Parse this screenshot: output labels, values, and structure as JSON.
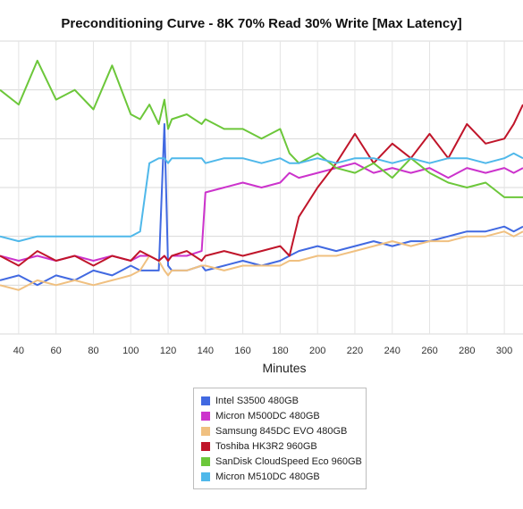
{
  "chart_data": {
    "type": "line",
    "title": "Preconditioning Curve - 8K 70% Read 30% Write [Max Latency]",
    "xlabel": "Minutes",
    "ylabel": "",
    "xlim": [
      30,
      310
    ],
    "ylim": [
      0,
      6
    ],
    "xticks": [
      "40",
      "60",
      "80",
      "100",
      "120",
      "140",
      "160",
      "180",
      "200",
      "220",
      "240",
      "260",
      "280",
      "300"
    ],
    "x": [
      30,
      40,
      50,
      60,
      70,
      80,
      90,
      100,
      105,
      110,
      115,
      118,
      120,
      122,
      130,
      138,
      140,
      150,
      160,
      170,
      180,
      185,
      190,
      200,
      210,
      220,
      230,
      240,
      250,
      260,
      270,
      280,
      290,
      300,
      305,
      310
    ],
    "grid": true,
    "legend_position": "bottom",
    "series": [
      {
        "name": "Intel S3500 480GB",
        "color": "#4169e1",
        "values": [
          1.1,
          1.2,
          1.0,
          1.2,
          1.1,
          1.3,
          1.2,
          1.4,
          1.3,
          1.3,
          1.3,
          4.3,
          1.4,
          1.3,
          1.3,
          1.4,
          1.3,
          1.4,
          1.5,
          1.4,
          1.5,
          1.6,
          1.7,
          1.8,
          1.7,
          1.8,
          1.9,
          1.8,
          1.9,
          1.9,
          2.0,
          2.1,
          2.1,
          2.2,
          2.1,
          2.2
        ]
      },
      {
        "name": "Micron M500DC 480GB",
        "color": "#cc33cc",
        "values": [
          1.6,
          1.5,
          1.6,
          1.5,
          1.6,
          1.5,
          1.6,
          1.5,
          1.6,
          1.6,
          1.5,
          1.6,
          1.5,
          1.6,
          1.6,
          1.7,
          2.9,
          3.0,
          3.1,
          3.0,
          3.1,
          3.3,
          3.2,
          3.3,
          3.4,
          3.5,
          3.3,
          3.4,
          3.3,
          3.4,
          3.2,
          3.4,
          3.3,
          3.4,
          3.3,
          3.4
        ]
      },
      {
        "name": "Samsung 845DC EVO 480GB",
        "color": "#f0c080",
        "values": [
          1.0,
          0.9,
          1.1,
          1.0,
          1.1,
          1.0,
          1.1,
          1.2,
          1.3,
          1.6,
          1.5,
          1.3,
          1.2,
          1.3,
          1.3,
          1.4,
          1.4,
          1.3,
          1.4,
          1.4,
          1.4,
          1.5,
          1.5,
          1.6,
          1.6,
          1.7,
          1.8,
          1.9,
          1.8,
          1.9,
          1.9,
          2.0,
          2.0,
          2.1,
          2.0,
          2.1
        ]
      },
      {
        "name": "Toshiba HK3R2 960GB",
        "color": "#c0152a",
        "values": [
          1.6,
          1.4,
          1.7,
          1.5,
          1.6,
          1.4,
          1.6,
          1.5,
          1.7,
          1.6,
          1.5,
          1.6,
          1.5,
          1.6,
          1.7,
          1.5,
          1.6,
          1.7,
          1.6,
          1.7,
          1.8,
          1.6,
          2.4,
          3.0,
          3.5,
          4.1,
          3.5,
          3.9,
          3.6,
          4.1,
          3.6,
          4.3,
          3.9,
          4.0,
          4.3,
          4.7
        ]
      },
      {
        "name": "SanDisk CloudSpeed Eco 960GB",
        "color": "#6cc73a",
        "values": [
          5.0,
          4.7,
          5.6,
          4.8,
          5.0,
          4.6,
          5.5,
          4.5,
          4.4,
          4.7,
          4.3,
          4.8,
          4.2,
          4.4,
          4.5,
          4.3,
          4.4,
          4.2,
          4.2,
          4.0,
          4.2,
          3.7,
          3.5,
          3.7,
          3.4,
          3.3,
          3.5,
          3.2,
          3.6,
          3.3,
          3.1,
          3.0,
          3.1,
          2.8,
          2.8,
          2.8
        ]
      },
      {
        "name": "Micron M510DC 480GB",
        "color": "#4fb8ea",
        "values": [
          2.0,
          1.9,
          2.0,
          2.0,
          2.0,
          2.0,
          2.0,
          2.0,
          2.1,
          3.5,
          3.6,
          3.6,
          3.5,
          3.6,
          3.6,
          3.6,
          3.5,
          3.6,
          3.6,
          3.5,
          3.6,
          3.5,
          3.5,
          3.6,
          3.5,
          3.6,
          3.6,
          3.5,
          3.6,
          3.5,
          3.6,
          3.6,
          3.5,
          3.6,
          3.7,
          3.6
        ]
      }
    ]
  }
}
